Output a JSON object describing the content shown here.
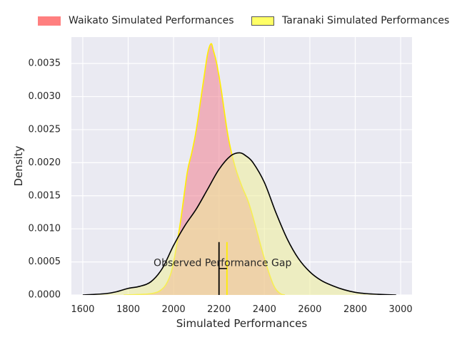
{
  "chart_data": {
    "type": "area",
    "xlabel": "Simulated Performances",
    "ylabel": "Density",
    "xlim": [
      1550,
      3050
    ],
    "ylim": [
      0,
      0.0039
    ],
    "xticks": [
      "1600",
      "1800",
      "2000",
      "2200",
      "2400",
      "2600",
      "2800",
      "3000"
    ],
    "yticks": [
      "0.0000",
      "0.0005",
      "0.0010",
      "0.0015",
      "0.0020",
      "0.0025",
      "0.0030",
      "0.0035"
    ],
    "grid": true,
    "legend_position": "top, outside plot",
    "series": [
      {
        "name": "Waikato Simulated Performances",
        "fill_color": "#f08090",
        "line_color": "#ffee00",
        "x": [
          1780,
          1900,
          1950,
          1980,
          2000,
          2030,
          2060,
          2080,
          2100,
          2130,
          2150,
          2165,
          2175,
          2190,
          2210,
          2240,
          2270,
          2300,
          2330,
          2360,
          2400,
          2440,
          2470,
          2490
        ],
        "y": [
          0,
          2e-05,
          9e-05,
          0.00025,
          0.0005,
          0.0011,
          0.00185,
          0.00215,
          0.0025,
          0.0032,
          0.00365,
          0.0038,
          0.0037,
          0.0035,
          0.0031,
          0.0024,
          0.00195,
          0.00165,
          0.0014,
          0.00105,
          0.00055,
          0.00015,
          2e-05,
          0
        ]
      },
      {
        "name": "Taranaki Simulated Performances",
        "fill_color": "#eeee99",
        "line_color": "#000000",
        "x": [
          1600,
          1700,
          1750,
          1800,
          1850,
          1900,
          1950,
          2000,
          2050,
          2100,
          2150,
          2200,
          2250,
          2290,
          2320,
          2350,
          2400,
          2450,
          2500,
          2550,
          2600,
          2650,
          2700,
          2750,
          2800,
          2850,
          2900,
          2980
        ],
        "y": [
          0,
          2e-05,
          5e-05,
          0.0001,
          0.00013,
          0.0002,
          0.0004,
          0.00075,
          0.00105,
          0.0013,
          0.0016,
          0.0019,
          0.0021,
          0.00215,
          0.0021,
          0.002,
          0.0017,
          0.00125,
          0.00085,
          0.00055,
          0.00035,
          0.00022,
          0.00014,
          8e-05,
          4e-05,
          2e-05,
          1e-05,
          0
        ]
      }
    ],
    "vertical_markers": [
      {
        "x": 2200,
        "y_top": 0.0008,
        "color": "#000000"
      },
      {
        "x": 2235,
        "y_top": 0.0008,
        "color": "#ffee00"
      }
    ],
    "annotation": {
      "text": "Observed Performance Gap",
      "x": 2200,
      "y": 0.00048,
      "bracket_y": 0.0004
    }
  }
}
